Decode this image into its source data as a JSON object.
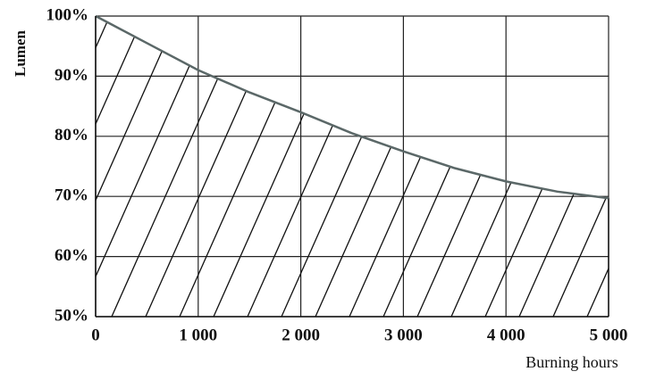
{
  "chart_data": {
    "type": "area",
    "y_label": "Lumen",
    "x_label": "Burning hours",
    "x": [
      0,
      500,
      1000,
      1500,
      2000,
      2500,
      3000,
      3500,
      4000,
      4500,
      5000
    ],
    "series": [
      {
        "name": "Lumen",
        "color": "#5b6868",
        "values": [
          100,
          95.5,
          91,
          87.3,
          84,
          80.5,
          77.5,
          74.7,
          72.5,
          70.8,
          69.7
        ]
      }
    ],
    "xlim": [
      0,
      5000
    ],
    "xticks": [
      {
        "value": 0,
        "label": "0"
      },
      {
        "value": 1000,
        "label": "1 000"
      },
      {
        "value": 2000,
        "label": "2 000"
      },
      {
        "value": 3000,
        "label": "3 000"
      },
      {
        "value": 4000,
        "label": "4 000"
      },
      {
        "value": 5000,
        "label": "5 000"
      }
    ],
    "ylim": [
      50,
      100
    ],
    "yticks": [
      {
        "value": 50,
        "label": "50%"
      },
      {
        "value": 60,
        "label": "60%"
      },
      {
        "value": 70,
        "label": "70%"
      },
      {
        "value": 80,
        "label": "80%"
      },
      {
        "value": 90,
        "label": "90%"
      },
      {
        "value": 100,
        "label": "100%"
      }
    ],
    "grid": true,
    "hatch": true
  }
}
